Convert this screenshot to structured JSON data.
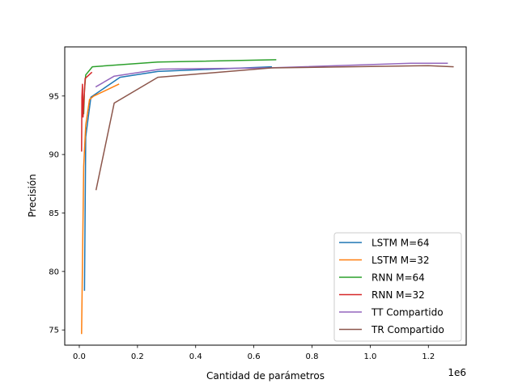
{
  "chart_data": {
    "type": "line",
    "title": "",
    "xlabel": "Cantidad de parámetros",
    "ylabel": "Precisión",
    "x_offset_label": "1e6",
    "xlim": [
      -50000,
      1330000
    ],
    "ylim": [
      73.7,
      99.2
    ],
    "x_scale": 1000000,
    "x_ticks": [
      0,
      200000,
      400000,
      600000,
      800000,
      1000000,
      1200000
    ],
    "x_tick_labels": [
      "0.0",
      "0.2",
      "0.4",
      "0.6",
      "0.8",
      "1.0",
      "1.2"
    ],
    "y_ticks": [
      75,
      80,
      85,
      90,
      95
    ],
    "y_tick_labels": [
      "75",
      "80",
      "85",
      "90",
      "95"
    ],
    "grid": false,
    "legend_position": "lower-right",
    "series": [
      {
        "name": "LSTM M=64",
        "color": "#1f77b4",
        "x": [
          18000,
          22000,
          40000,
          140000,
          270000,
          660000
        ],
        "y": [
          78.4,
          91.5,
          94.9,
          96.6,
          97.1,
          97.5
        ]
      },
      {
        "name": "LSTM M=32",
        "color": "#ff7f0e",
        "x": [
          8000,
          15000,
          22000,
          35000,
          50000,
          135000
        ],
        "y": [
          74.7,
          89.0,
          92.5,
          94.7,
          95.0,
          96.0
        ]
      },
      {
        "name": "RNN M=64",
        "color": "#2ca02c",
        "x": [
          15000,
          18000,
          22000,
          45000,
          270000,
          675000
        ],
        "y": [
          93.5,
          95.5,
          96.8,
          97.5,
          97.9,
          98.1
        ]
      },
      {
        "name": "RNN M=32",
        "color": "#d62728",
        "x": [
          8000,
          9000,
          11000,
          13000,
          20000,
          42000
        ],
        "y": [
          90.3,
          94.9,
          96.0,
          93.2,
          96.5,
          97.0
        ]
      },
      {
        "name": "TT Compartido",
        "color": "#9467bd",
        "x": [
          58000,
          120000,
          280000,
          650000,
          1140000,
          1265000
        ],
        "y": [
          95.8,
          96.7,
          97.3,
          97.4,
          97.8,
          97.8
        ]
      },
      {
        "name": "TR Compartido",
        "color": "#8c564b",
        "x": [
          58000,
          120000,
          270000,
          660000,
          1200000,
          1285000
        ],
        "y": [
          87.0,
          94.4,
          96.6,
          97.4,
          97.6,
          97.5
        ]
      }
    ]
  }
}
